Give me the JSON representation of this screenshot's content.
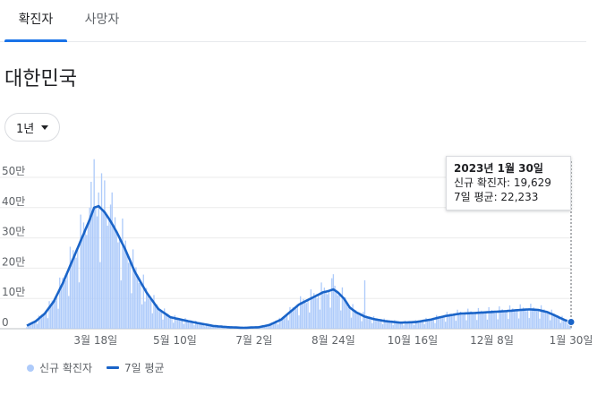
{
  "tabs": [
    {
      "label": "확진자",
      "active": true
    },
    {
      "label": "사망자",
      "active": false
    }
  ],
  "region": "대한민국",
  "range_button": {
    "label": "1년"
  },
  "tooltip": {
    "date": "2023년 1월 30일",
    "cases_line": "신규 확진자: 19,629",
    "avg_line": "7일 평균: 22,233"
  },
  "legend": {
    "cases": "신규 확진자",
    "average": "7일 평균"
  },
  "colors": {
    "bars": "#aecbfa",
    "line": "#1a64c8",
    "accent": "#1a73e8"
  },
  "chart_data": {
    "type": "bar",
    "title": "",
    "xlabel": "",
    "ylabel": "",
    "ylim": [
      0,
      500000
    ],
    "y_ticks": [
      0,
      100000,
      200000,
      300000,
      400000,
      500000
    ],
    "y_tick_labels": [
      "0",
      "10만",
      "20만",
      "30만",
      "40만",
      "50만"
    ],
    "x_tick_labels": [
      "3월 18일",
      "5월 10일",
      "7월 2일",
      "8월 24일",
      "10월 16일",
      "12월 8일",
      "1월 30일"
    ],
    "x_tick_days": [
      46,
      99,
      152,
      205,
      258,
      311,
      364
    ],
    "grid": true,
    "legend_position": "bottom-left",
    "series": [
      {
        "name": "7일 평균",
        "type": "line",
        "days": [
          0,
          6,
          12,
          18,
          24,
          30,
          36,
          42,
          45,
          48,
          52,
          56,
          60,
          66,
          72,
          80,
          88,
          96,
          105,
          115,
          125,
          135,
          145,
          155,
          162,
          170,
          176,
          182,
          188,
          194,
          198,
          202,
          205,
          208,
          212,
          216,
          220,
          226,
          232,
          240,
          250,
          260,
          270,
          280,
          290,
          300,
          310,
          320,
          330,
          336,
          342,
          348,
          354,
          360,
          364
        ],
        "values": [
          10000,
          25000,
          50000,
          90000,
          150000,
          220000,
          290000,
          360000,
          400000,
          405000,
          385000,
          355000,
          320000,
          260000,
          190000,
          120000,
          65000,
          38000,
          28000,
          18000,
          9000,
          5000,
          3000,
          5000,
          12000,
          30000,
          55000,
          80000,
          95000,
          110000,
          120000,
          125000,
          130000,
          120000,
          100000,
          70000,
          55000,
          40000,
          32000,
          25000,
          20000,
          22000,
          30000,
          42000,
          50000,
          52000,
          55000,
          58000,
          62000,
          64000,
          62000,
          55000,
          42000,
          28000,
          22233
        ]
      },
      {
        "name": "신규 확진자",
        "type": "bar",
        "spikes": [
          {
            "day": 45,
            "value": 560000
          },
          {
            "day": 52,
            "value": 490000
          },
          {
            "day": 48,
            "value": 450000
          },
          {
            "day": 42,
            "value": 400000
          },
          {
            "day": 56,
            "value": 410000
          },
          {
            "day": 79,
            "value": 90000
          },
          {
            "day": 205,
            "value": 180000
          },
          {
            "day": 226,
            "value": 160000
          }
        ],
        "last_value": 19629
      }
    ]
  }
}
